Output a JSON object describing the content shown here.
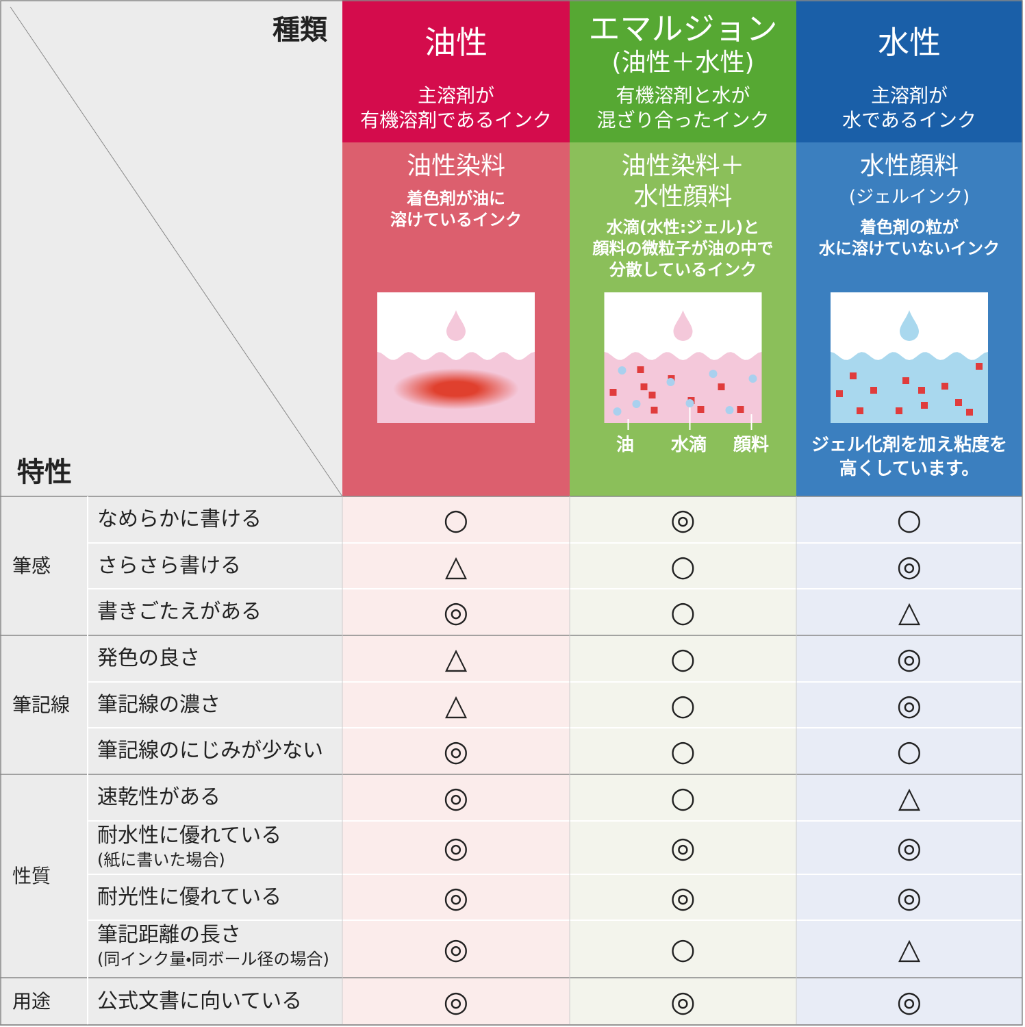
{
  "header": {
    "type_label": "種類",
    "property_label": "特性"
  },
  "columns": [
    {
      "title": "油性",
      "desc": [
        "主溶剤が",
        "有機溶剤であるインク"
      ],
      "ink_title": [
        "油性染料"
      ],
      "ink_desc": [
        "着色剤が油に",
        "溶けているインク"
      ]
    },
    {
      "title": "エマルジョン",
      "subtitle": "(油性＋水性)",
      "desc": [
        "有機溶剤と水が",
        "混ざり合ったインク"
      ],
      "ink_title": [
        "油性染料＋",
        "水性顔料"
      ],
      "ink_desc": [
        "水滴(水性:ジェル)と",
        "顔料の微粒子が油の中で",
        "分散しているインク"
      ],
      "diagram_labels": [
        "油",
        "水滴",
        "顔料"
      ]
    },
    {
      "title": "水性",
      "desc": [
        "主溶剤が",
        "水であるインク"
      ],
      "ink_title": [
        "水性顔料"
      ],
      "ink_sub": "(ジェルインク)",
      "ink_desc": [
        "着色剤の粒が",
        "水に溶けていないインク"
      ],
      "note": [
        "ジェル化剤を加え粘度を",
        "高くしています。"
      ]
    }
  ],
  "groups": [
    {
      "name": "筆感",
      "rows": [
        {
          "label": "なめらかに書ける",
          "ratings": [
            "○",
            "◎",
            "○"
          ]
        },
        {
          "label": "さらさら書ける",
          "ratings": [
            "△",
            "○",
            "◎"
          ]
        },
        {
          "label": "書きごたえがある",
          "ratings": [
            "◎",
            "○",
            "△"
          ]
        }
      ]
    },
    {
      "name": "筆記線",
      "rows": [
        {
          "label": "発色の良さ",
          "ratings": [
            "△",
            "○",
            "◎"
          ]
        },
        {
          "label": "筆記線の濃さ",
          "ratings": [
            "△",
            "○",
            "◎"
          ]
        },
        {
          "label": "筆記線のにじみが少ない",
          "ratings": [
            "◎",
            "○",
            "○"
          ]
        }
      ]
    },
    {
      "name": "性質",
      "rows": [
        {
          "label": "速乾性がある",
          "ratings": [
            "◎",
            "○",
            "△"
          ]
        },
        {
          "label": "耐水性に優れている",
          "sublabel": "(紙に書いた場合)",
          "ratings": [
            "◎",
            "◎",
            "◎"
          ]
        },
        {
          "label": "耐光性に優れている",
          "ratings": [
            "◎",
            "◎",
            "◎"
          ]
        },
        {
          "label": "筆記距離の長さ",
          "sublabel": "(同インク量・同ボール径の場合)",
          "ratings": [
            "◎",
            "○",
            "△"
          ]
        }
      ]
    },
    {
      "name": "用途",
      "rows": [
        {
          "label": "公式文書に向いている",
          "ratings": [
            "◎",
            "◎",
            "◎"
          ]
        }
      ]
    }
  ]
}
